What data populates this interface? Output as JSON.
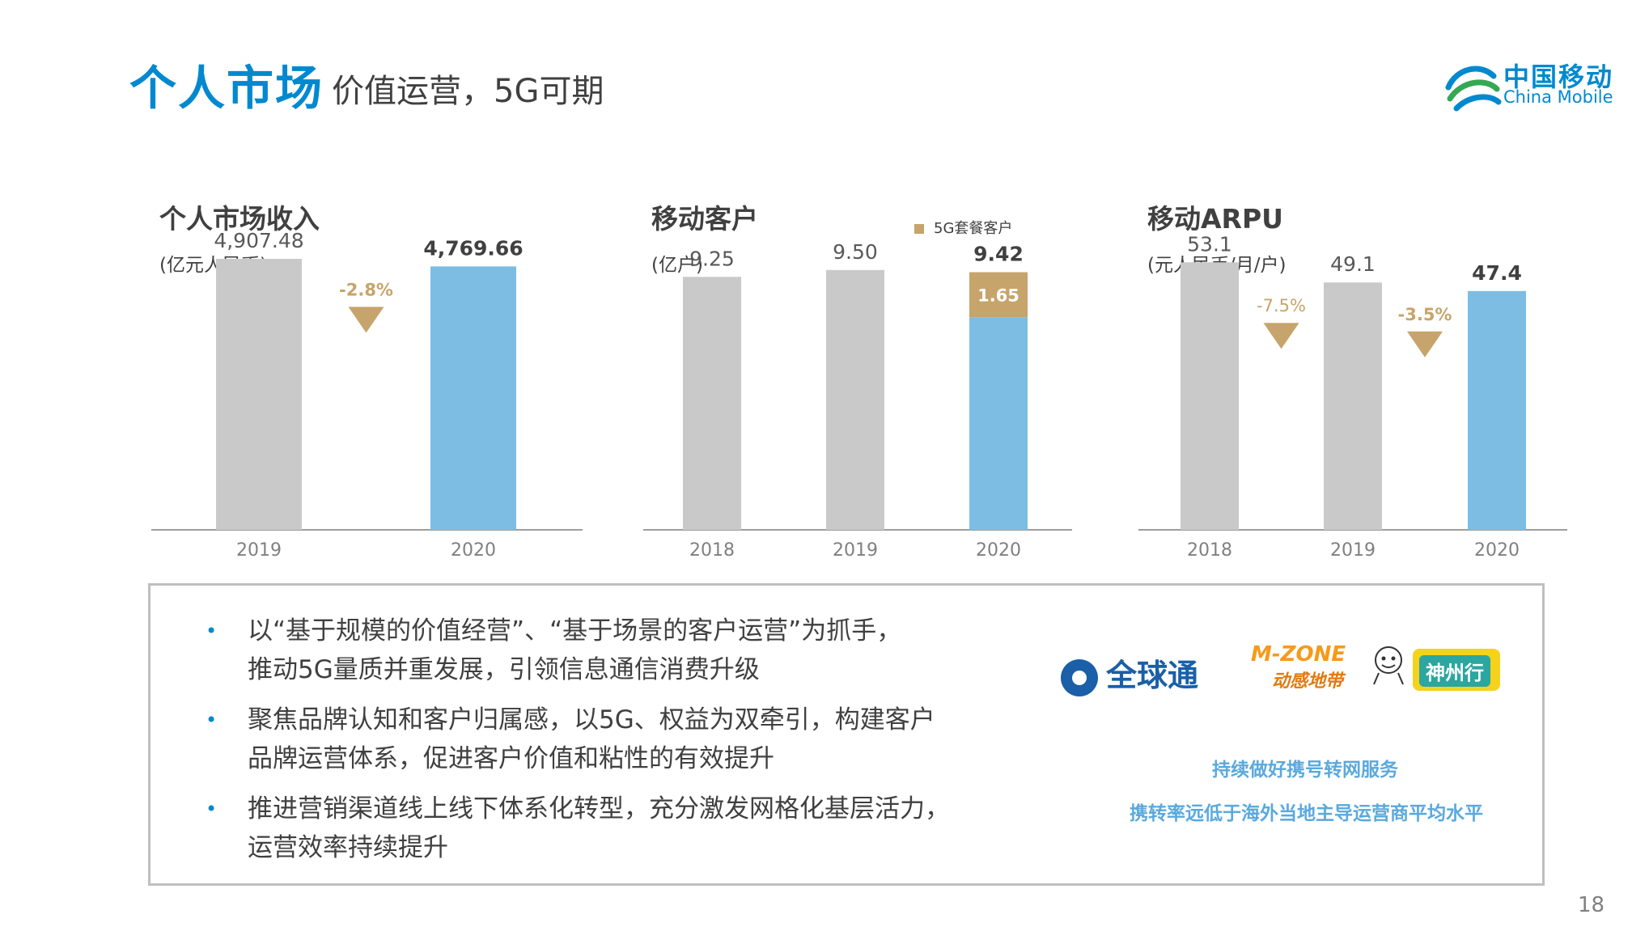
{
  "header": {
    "title": "个人市场",
    "subtitle": "价值运营，5G可期",
    "logo_cn": "中国移动",
    "logo_en": "China Mobile"
  },
  "colors": {
    "brand_blue": "#0089cf",
    "bar_gray": "#c9c9c9",
    "bar_blue": "#7dbde4",
    "bar_gold": "#c6a46b",
    "arrow_gold": "#c6a46b"
  },
  "chart_data": [
    {
      "type": "bar",
      "title": "个人市场收入",
      "ylabel": "(亿元人民币)",
      "categories": [
        "2019",
        "2020"
      ],
      "values": [
        4907.48,
        4769.66
      ],
      "value_labels": [
        "4,907.48",
        "4,769.66"
      ],
      "highlight": [
        false,
        true
      ],
      "changes": [
        {
          "between": [
            "2019",
            "2020"
          ],
          "label": "-2.8%",
          "value": -2.8
        }
      ],
      "ylim": [
        0,
        5200
      ]
    },
    {
      "type": "bar",
      "title": "移动客户",
      "ylabel": "(亿户)",
      "categories": [
        "2018",
        "2019",
        "2020"
      ],
      "values": [
        9.25,
        9.5,
        9.42
      ],
      "value_labels": [
        "9.25",
        "9.50",
        "9.42"
      ],
      "highlight": [
        false,
        false,
        true
      ],
      "stacked_segment": {
        "name": "5G套餐客户",
        "category": "2020",
        "value": 1.65,
        "label": "1.65"
      },
      "ylim": [
        0,
        10.5
      ]
    },
    {
      "type": "bar",
      "title": "移动ARPU",
      "ylabel": "(元人民币/月/户)",
      "categories": [
        "2018",
        "2019",
        "2020"
      ],
      "values": [
        53.1,
        49.1,
        47.4
      ],
      "value_labels": [
        "53.1",
        "49.1",
        "47.4"
      ],
      "highlight": [
        false,
        false,
        true
      ],
      "changes": [
        {
          "between": [
            "2018",
            "2019"
          ],
          "label": "-7.5%",
          "value": -7.5
        },
        {
          "between": [
            "2019",
            "2020"
          ],
          "label": "-3.5%",
          "value": -3.5
        }
      ],
      "ylim": [
        0,
        57
      ]
    }
  ],
  "info": {
    "bullets": [
      [
        "以“基于规模的价值经营”、“基于场景的客户运营”为抓手，",
        "推动5G量质并重发展，引领信息通信消费升级"
      ],
      [
        "聚焦品牌认知和客户归属感，以5G、权益为双牵引，构建客户",
        "品牌运营体系，促进客户价值和粘性的有效提升"
      ],
      [
        "推进营销渠道线上线下体系化转型，充分激发网格化基层活力，",
        "运营效率持续提升"
      ]
    ],
    "brands": {
      "gotone": "全球通",
      "mzone_top": "M-ZONE",
      "mzone_bottom": "动感地带",
      "szx": "神州行"
    },
    "notes": [
      "持续做好携号转网服务",
      "携转率远低于海外当地主导运营商平均水平"
    ]
  },
  "page_number": "18"
}
